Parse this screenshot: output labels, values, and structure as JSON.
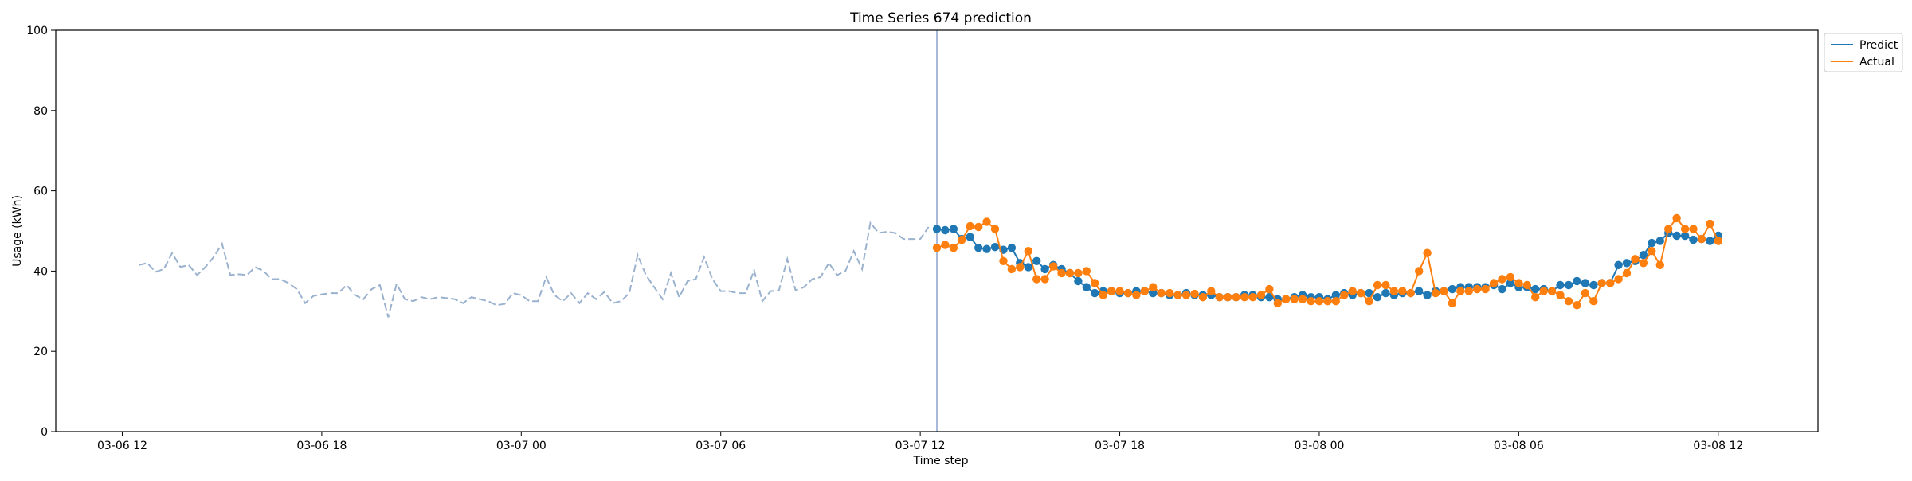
{
  "chart_data": {
    "type": "line",
    "title": "Time Series 674 prediction",
    "xlabel": "Time step",
    "ylabel": "Usage (kWh)",
    "x_axis": "datetime",
    "xlim": [
      "2025-03-06 10:00",
      "2025-03-08 15:00"
    ],
    "ylim": [
      0,
      100
    ],
    "yticks": [
      0,
      20,
      40,
      60,
      80,
      100
    ],
    "xticks": [
      "03-06 12",
      "03-06 18",
      "03-07 00",
      "03-07 06",
      "03-07 12",
      "03-07 18",
      "03-08 00",
      "03-08 06",
      "03-08 12"
    ],
    "xtick_times": [
      "2025-03-06 12:00",
      "2025-03-06 18:00",
      "2025-03-07 00:00",
      "2025-03-07 06:00",
      "2025-03-07 12:00",
      "2025-03-07 18:00",
      "2025-03-08 00:00",
      "2025-03-08 06:00",
      "2025-03-08 12:00"
    ],
    "grid": false,
    "legend_position": "outside upper-right",
    "history": {
      "style": "dashed",
      "color": "#9bb2cf",
      "start": "2025-03-06 12:30",
      "step_minutes": 15,
      "values": [
        41.5,
        42,
        39.8,
        40.5,
        44.5,
        41,
        41.5,
        39,
        41,
        43.5,
        46.8,
        39,
        39.2,
        39,
        41,
        40,
        38,
        38,
        37,
        35.5,
        32,
        33.8,
        34.2,
        34.5,
        34.5,
        36.5,
        34,
        33,
        35.5,
        36.5,
        28.5,
        36.8,
        33,
        32.5,
        33.5,
        33,
        33.5,
        33.3,
        33,
        32,
        33.5,
        33,
        32.5,
        31.5,
        31.8,
        34.5,
        34,
        32.5,
        32.5,
        38.5,
        34,
        32.5,
        34.5,
        32,
        34.5,
        33,
        34.8,
        32,
        32.5,
        34.5,
        44,
        39,
        36,
        33,
        39.5,
        33.5,
        37.5,
        38,
        43.5,
        38,
        35,
        35,
        34.5,
        34.5,
        40.2,
        32.5,
        35,
        35.2,
        43,
        35.2,
        36,
        38,
        38.5,
        42,
        39,
        40,
        45,
        40.5,
        52,
        49.5,
        49.8,
        49.5,
        48,
        48,
        48,
        51
      ]
    },
    "split_time": "2025-03-07 12:30",
    "series": [
      {
        "name": "Predict",
        "color": "#1f77b4",
        "start": "2025-03-07 12:30",
        "step_minutes": 15,
        "values": [
          50.5,
          50.2,
          50.5,
          48,
          48.5,
          45.8,
          45.5,
          46,
          45.3,
          45.8,
          42,
          41,
          42.5,
          40.5,
          41.5,
          40.5,
          39.5,
          37.5,
          36,
          34.5,
          35,
          35,
          34.5,
          34.5,
          35,
          35,
          34.5,
          34.5,
          34,
          34,
          34.5,
          34,
          34,
          34,
          33.5,
          33.5,
          33.5,
          34,
          34,
          33.5,
          33.5,
          33,
          33,
          33.5,
          34,
          33.5,
          33.5,
          33,
          34,
          34.5,
          34,
          34.5,
          34.5,
          33.5,
          34.5,
          34,
          34.5,
          34.5,
          35,
          34,
          35,
          35,
          35.5,
          36,
          36,
          36,
          36,
          36.5,
          35.5,
          37,
          36,
          36,
          35.5,
          35.5,
          35,
          36.5,
          36.5,
          37.5,
          37,
          36.5,
          37,
          37,
          41.5,
          42,
          42.5,
          44,
          47,
          47.5,
          49.5,
          48.8,
          48.8,
          47.8,
          48,
          47.5,
          48.8
        ]
      },
      {
        "name": "Actual",
        "color": "#ff7f0e",
        "start": "2025-03-07 12:30",
        "step_minutes": 15,
        "values": [
          45.8,
          46.5,
          45.8,
          47.8,
          51.2,
          51,
          52.3,
          50.5,
          42.5,
          40.5,
          41,
          45,
          38,
          38,
          41.2,
          39.5,
          39.5,
          39.5,
          40,
          37,
          34,
          35,
          35,
          34.5,
          34,
          35,
          36,
          34.5,
          34.5,
          34,
          34,
          34.3,
          33.5,
          35,
          33.5,
          33.5,
          33.5,
          33.5,
          33.5,
          34,
          35.5,
          32,
          33,
          33,
          33,
          32.5,
          32.5,
          32.5,
          32.5,
          34,
          35,
          34.5,
          32.5,
          36.5,
          36.5,
          35,
          35,
          34.5,
          40,
          44.5,
          34.5,
          35,
          32,
          35,
          35,
          35.5,
          35.5,
          37,
          38,
          38.5,
          37,
          36.5,
          33.5,
          35,
          35,
          34,
          32.5,
          31.5,
          34.5,
          32.5,
          37,
          37,
          38,
          39.5,
          43,
          42,
          45,
          41.5,
          50.5,
          53.2,
          50.5,
          50.5,
          48,
          51.8,
          47.5
        ]
      }
    ]
  }
}
